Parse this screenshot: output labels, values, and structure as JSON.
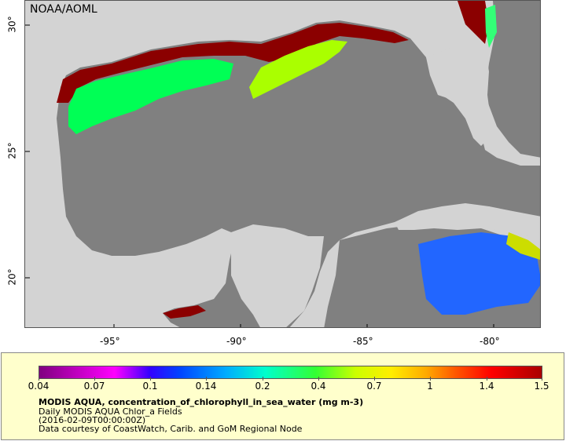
{
  "map": {
    "credit": "NOAA/AOML",
    "lon_ticks": [
      "-95°",
      "-90°",
      "-85°",
      "-80°"
    ],
    "lat_ticks": [
      "30°",
      "25°",
      "20°"
    ]
  },
  "legend": {
    "colorbar_ticks": [
      "0.04",
      "0.07",
      "0.1",
      "0.14",
      "0.2",
      "0.4",
      "0.7",
      "1",
      "1.4",
      "1.5"
    ],
    "title": "MODIS AQUA, concentration_of_chlorophyll_in_sea_water (mg m-3)",
    "subtitle": "Daily MODIS AQUA Chlor_a Fields",
    "time": "(2016-02-09T00:00:00Z)",
    "courtesy": "Data courtesy of CoastWatch, Carib. and GoM Regional Node"
  },
  "colors": {
    "land": "#d3d3d3",
    "no_data_water": "#808080",
    "legend_bg": "#ffffcc"
  }
}
